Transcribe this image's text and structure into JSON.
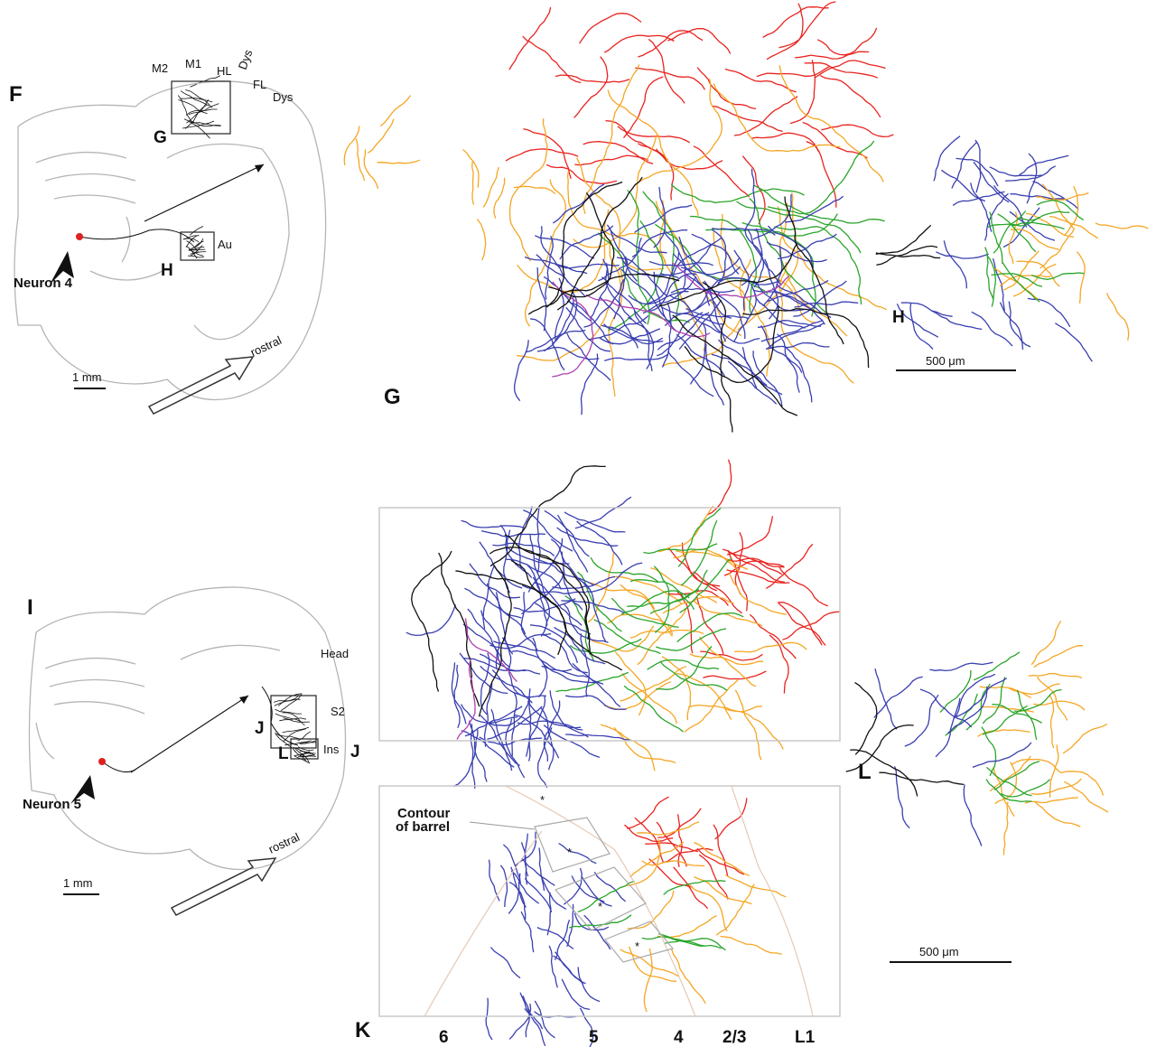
{
  "panel_f": {
    "label": "F",
    "areas": [
      "M2",
      "M1",
      "HL",
      "Dys",
      "FL",
      "Dys"
    ],
    "inset_g": "G",
    "area_au": "Au",
    "inset_h": "H",
    "neuron": "Neuron 4",
    "scale": "1 mm",
    "direction": "rostral"
  },
  "panel_g": {
    "label": "G"
  },
  "panel_h": {
    "label": "H",
    "scale": "500 μm"
  },
  "panel_i": {
    "label": "I",
    "areas": [
      "Head",
      "S2",
      "Ins"
    ],
    "inset_j": "J",
    "inset_j2": "J",
    "inset_l": "L",
    "neuron": "Neuron 5",
    "scale": "1 mm",
    "direction": "rostral"
  },
  "panel_k": {
    "label": "K",
    "annotation": [
      "Contour",
      "of barrel"
    ],
    "barrel_marks": [
      "*",
      "*",
      "*",
      "*"
    ],
    "layers": [
      "6",
      "5",
      "4",
      "2/3",
      "L1"
    ]
  },
  "panel_l": {
    "label": "L",
    "scale": "500 μm"
  }
}
